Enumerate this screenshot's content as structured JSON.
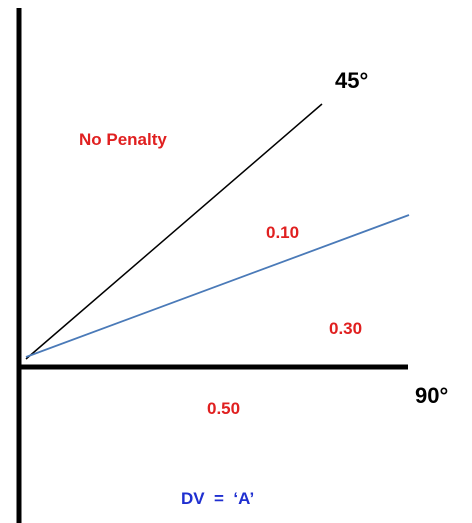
{
  "diagram": {
    "labels": {
      "angle_45": "45°",
      "angle_90": "90°",
      "no_penalty": "No Penalty",
      "penalty_010": "0.10",
      "penalty_030": "0.30",
      "penalty_050": "0.50",
      "dv": "DV  =  ‘A’"
    },
    "colors": {
      "axis": "#000000",
      "line_45": "#000000",
      "line_blue": "#4a7ab8",
      "penalty_text": "#e02020",
      "dv_text": "#1f2fd0",
      "angle_text": "#000000"
    }
  }
}
